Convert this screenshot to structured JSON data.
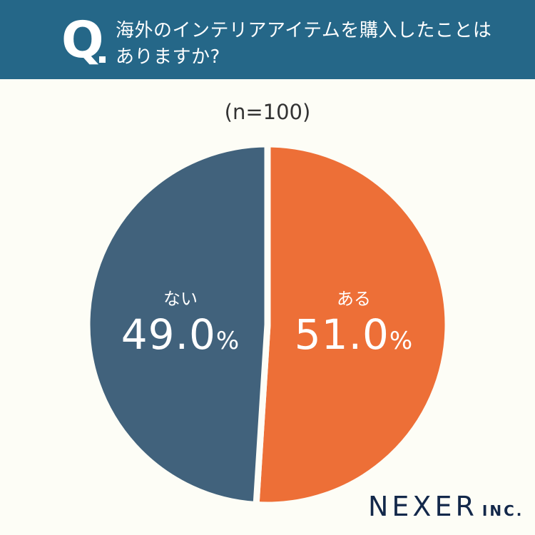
{
  "header": {
    "q_label": "Q",
    "question_line1": "海外のインテリアアイテムを購入したことは",
    "question_line2": "ありますか?"
  },
  "sample_size": "(n=100)",
  "colors": {
    "header_bg": "#256788",
    "background": "#fdfdf6",
    "yes": "#ed6f37",
    "no": "#41627c",
    "logo": "#13284a"
  },
  "chart_data": {
    "type": "pie",
    "title": "海外のインテリアアイテムを購入したことはありますか?",
    "subtitle": "(n=100)",
    "categories": [
      "ある",
      "ない"
    ],
    "values": [
      51.0,
      49.0
    ],
    "unit": "%",
    "colors": [
      "#ed6f37",
      "#41627c"
    ],
    "start_angle": "12 o'clock, clockwise",
    "legend": "none (labels inside slices)"
  },
  "labels": {
    "yes": {
      "category": "ある",
      "value": "51.0",
      "unit": "%"
    },
    "no": {
      "category": "ない",
      "value": "49.0",
      "unit": "%"
    }
  },
  "logo": {
    "name": "NEXER",
    "suffix": "INC."
  }
}
